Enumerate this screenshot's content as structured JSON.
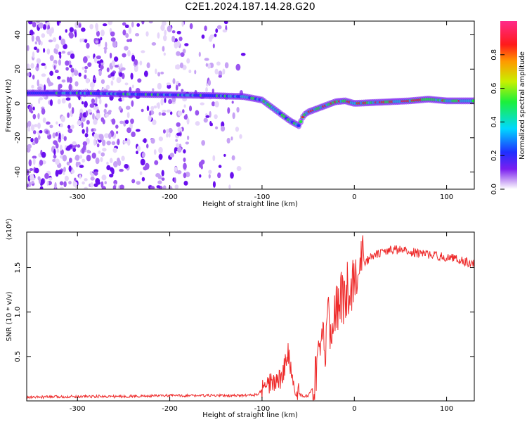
{
  "title": "C2E1.2024.187.14.28.G20",
  "colorbar": {
    "label": "Normalized spectral amplitude",
    "ticks": [
      "0.0",
      "0.2",
      "0.4",
      "0.6",
      "0.8"
    ],
    "tick_values": [
      0.0,
      0.2,
      0.4,
      0.6,
      0.8
    ],
    "range": [
      0,
      1
    ],
    "colormap": [
      "#ffffff",
      "#d9b8f5",
      "#7a1ff0",
      "#1f2fff",
      "#00d8ff",
      "#1cf03a",
      "#c8f000",
      "#ff9a00",
      "#ff1a1a",
      "#ff2a8a"
    ]
  },
  "colors": {
    "snr_line": "#ee2a2a",
    "ridge": "#1fb8d8",
    "axis": "#000000"
  },
  "chart_data": [
    {
      "type": "heatmap",
      "xlabel": "Height of straight line (km)",
      "ylabel": "Frequency (Hz)",
      "xlim": [
        -355,
        130
      ],
      "ylim": [
        -50,
        48
      ],
      "xticks": [
        -300,
        -200,
        -100,
        0,
        100
      ],
      "yticks": [
        -40,
        -20,
        0,
        20,
        40
      ],
      "ridge": {
        "x": [
          -355,
          -300,
          -250,
          -200,
          -150,
          -120,
          -100,
          -90,
          -80,
          -70,
          -60,
          -55,
          -50,
          -40,
          -30,
          -20,
          -10,
          0,
          20,
          40,
          60,
          80,
          90,
          100,
          110,
          130
        ],
        "y": [
          6,
          6,
          5.5,
          5,
          4.5,
          4,
          2,
          -2,
          -6,
          -10,
          -13,
          -7,
          -5,
          -3,
          -1,
          1,
          1.5,
          0,
          0.5,
          1,
          1.5,
          2.5,
          2,
          1.5,
          1.5,
          1.5
        ]
      }
    },
    {
      "type": "line",
      "xlabel": "Height of straight line (km)",
      "ylabel": "SNR (10 * v/v)",
      "yunit": "(x10⁴)",
      "xlim": [
        -355,
        130
      ],
      "ylim": [
        0,
        1.9
      ],
      "xticks": [
        -300,
        -200,
        -100,
        0,
        100
      ],
      "yticks": [
        0.5,
        1.0,
        1.5
      ],
      "series": [
        {
          "x": [
            -355,
            -300,
            -250,
            -200,
            -150,
            -120,
            -105,
            -100,
            -95,
            -90,
            -85,
            -80,
            -75,
            -72,
            -70,
            -68,
            -65,
            -60,
            -55,
            -50,
            -45,
            -40,
            -35,
            -30,
            -25,
            -20,
            -15,
            -10,
            -5,
            0,
            5,
            10,
            20,
            30,
            40,
            50,
            60,
            70,
            80,
            90,
            100,
            110,
            120,
            130
          ],
          "y": [
            0.04,
            0.05,
            0.05,
            0.06,
            0.06,
            0.06,
            0.07,
            0.12,
            0.15,
            0.2,
            0.22,
            0.25,
            0.4,
            0.55,
            0.45,
            0.3,
            0.15,
            0.08,
            0.05,
            0.06,
            0.15,
            0.3,
            0.55,
            0.75,
            0.95,
            1.05,
            1.1,
            1.2,
            1.3,
            1.38,
            1.5,
            1.55,
            1.63,
            1.67,
            1.7,
            1.7,
            1.68,
            1.66,
            1.65,
            1.63,
            1.62,
            1.6,
            1.57,
            1.54
          ]
        }
      ]
    }
  ]
}
